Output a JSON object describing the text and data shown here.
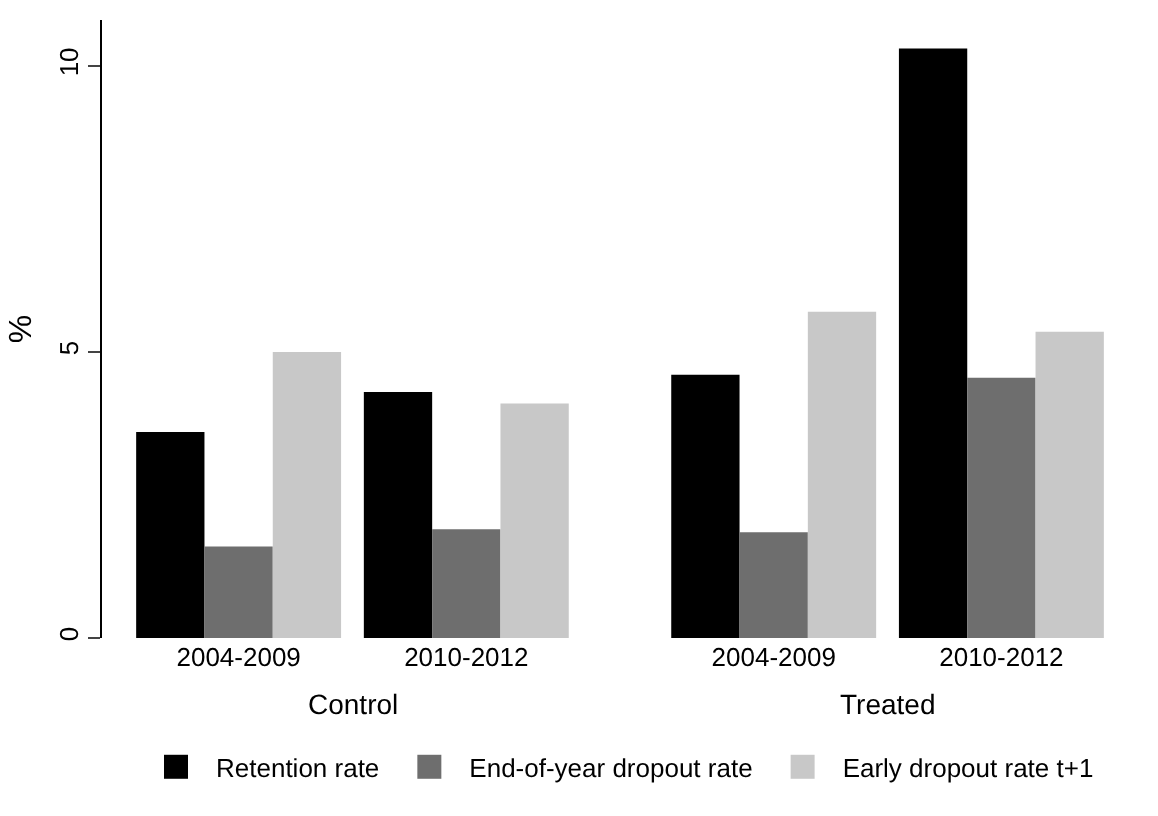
{
  "chart_data": {
    "type": "bar",
    "ylabel": "%",
    "categories": [
      "2004-2009",
      "2010-2012",
      "2004-2009",
      "2010-2012"
    ],
    "series": [
      {
        "name": "Retention rate",
        "color": "#000000",
        "values": [
          3.6,
          4.3,
          4.6,
          10.3
        ]
      },
      {
        "name": "End-of-year dropout rate",
        "color": "#6e6e6e",
        "values": [
          1.6,
          1.9,
          1.85,
          4.55
        ]
      },
      {
        "name": "Early dropout rate t+1",
        "color": "#c8c8c8",
        "values": [
          5.0,
          4.1,
          5.7,
          5.35
        ]
      }
    ],
    "annotations": [
      "Control",
      "Treated"
    ],
    "ylim": [
      0,
      10.8
    ],
    "yticks": [
      0,
      5,
      10
    ],
    "legend": "bottom"
  }
}
